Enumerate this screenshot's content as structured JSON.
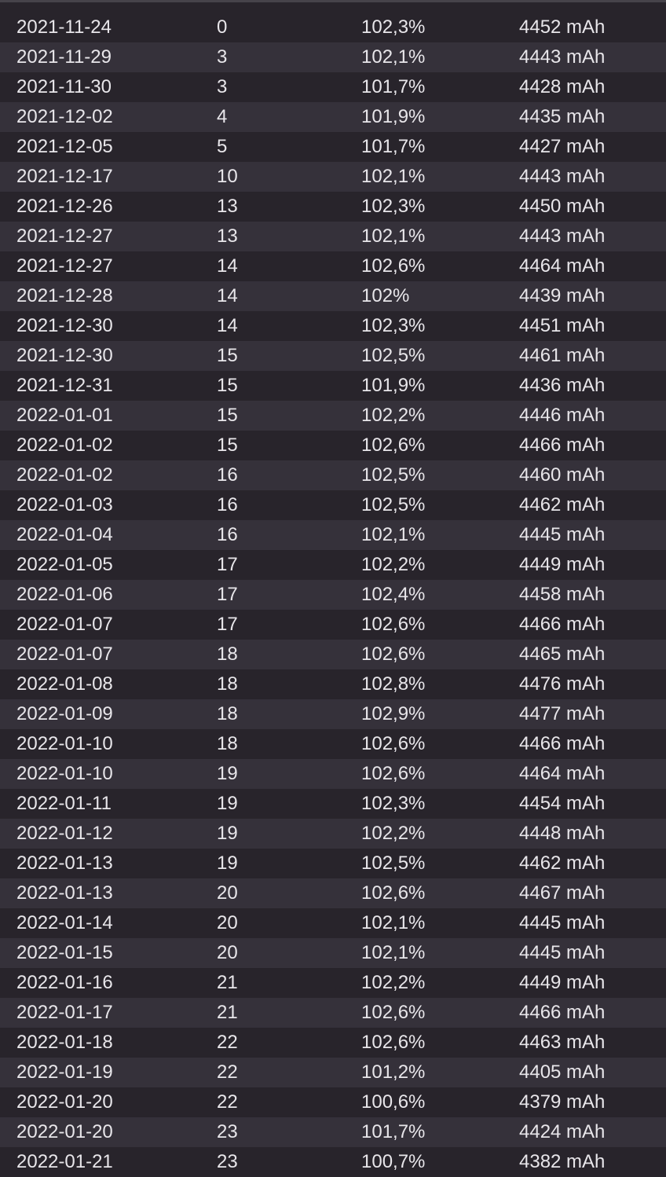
{
  "rows": [
    [
      "2021-11-24",
      "0",
      "102,3%",
      "4452 mAh"
    ],
    [
      "2021-11-29",
      "3",
      "102,1%",
      "4443 mAh"
    ],
    [
      "2021-11-30",
      "3",
      "101,7%",
      "4428 mAh"
    ],
    [
      "2021-12-02",
      "4",
      "101,9%",
      "4435 mAh"
    ],
    [
      "2021-12-05",
      "5",
      "101,7%",
      "4427 mAh"
    ],
    [
      "2021-12-17",
      "10",
      "102,1%",
      "4443 mAh"
    ],
    [
      "2021-12-26",
      "13",
      "102,3%",
      "4450 mAh"
    ],
    [
      "2021-12-27",
      "13",
      "102,1%",
      "4443 mAh"
    ],
    [
      "2021-12-27",
      "14",
      "102,6%",
      "4464 mAh"
    ],
    [
      "2021-12-28",
      "14",
      "102%",
      "4439 mAh"
    ],
    [
      "2021-12-30",
      "14",
      "102,3%",
      "4451 mAh"
    ],
    [
      "2021-12-30",
      "15",
      "102,5%",
      "4461 mAh"
    ],
    [
      "2021-12-31",
      "15",
      "101,9%",
      "4436 mAh"
    ],
    [
      "2022-01-01",
      "15",
      "102,2%",
      "4446 mAh"
    ],
    [
      "2022-01-02",
      "15",
      "102,6%",
      "4466 mAh"
    ],
    [
      "2022-01-02",
      "16",
      "102,5%",
      "4460 mAh"
    ],
    [
      "2022-01-03",
      "16",
      "102,5%",
      "4462 mAh"
    ],
    [
      "2022-01-04",
      "16",
      "102,1%",
      "4445 mAh"
    ],
    [
      "2022-01-05",
      "17",
      "102,2%",
      "4449 mAh"
    ],
    [
      "2022-01-06",
      "17",
      "102,4%",
      "4458 mAh"
    ],
    [
      "2022-01-07",
      "17",
      "102,6%",
      "4466 mAh"
    ],
    [
      "2022-01-07",
      "18",
      "102,6%",
      "4465 mAh"
    ],
    [
      "2022-01-08",
      "18",
      "102,8%",
      "4476 mAh"
    ],
    [
      "2022-01-09",
      "18",
      "102,9%",
      "4477 mAh"
    ],
    [
      "2022-01-10",
      "18",
      "102,6%",
      "4466 mAh"
    ],
    [
      "2022-01-10",
      "19",
      "102,6%",
      "4464 mAh"
    ],
    [
      "2022-01-11",
      "19",
      "102,3%",
      "4454 mAh"
    ],
    [
      "2022-01-12",
      "19",
      "102,2%",
      "4448 mAh"
    ],
    [
      "2022-01-13",
      "19",
      "102,5%",
      "4462 mAh"
    ],
    [
      "2022-01-13",
      "20",
      "102,6%",
      "4467 mAh"
    ],
    [
      "2022-01-14",
      "20",
      "102,1%",
      "4445 mAh"
    ],
    [
      "2022-01-15",
      "20",
      "102,1%",
      "4445 mAh"
    ],
    [
      "2022-01-16",
      "21",
      "102,2%",
      "4449 mAh"
    ],
    [
      "2022-01-17",
      "21",
      "102,6%",
      "4466 mAh"
    ],
    [
      "2022-01-18",
      "22",
      "102,6%",
      "4463 mAh"
    ],
    [
      "2022-01-19",
      "22",
      "101,2%",
      "4405 mAh"
    ],
    [
      "2022-01-20",
      "22",
      "100,6%",
      "4379 mAh"
    ],
    [
      "2022-01-20",
      "23",
      "101,7%",
      "4424 mAh"
    ],
    [
      "2022-01-21",
      "23",
      "100,7%",
      "4382 mAh"
    ]
  ]
}
